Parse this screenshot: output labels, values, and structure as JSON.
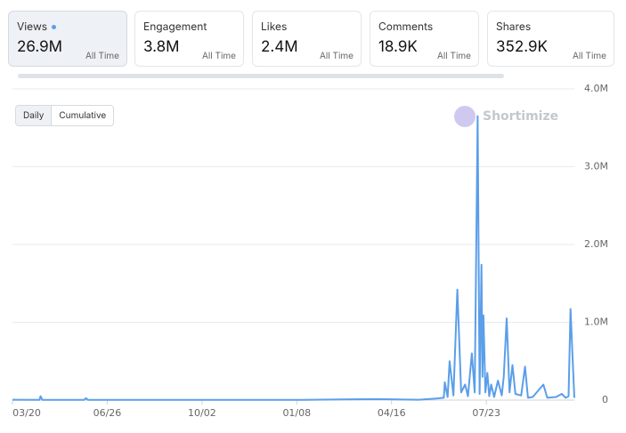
{
  "cards": [
    {
      "label": "Views",
      "value": "26.9M",
      "period": "All Time"
    },
    {
      "label": "Engagement",
      "value": "3.8M",
      "period": "All Time"
    },
    {
      "label": "Likes",
      "value": "2.4M",
      "period": "All Time"
    },
    {
      "label": "Comments",
      "value": "18.9K",
      "period": "All Time"
    },
    {
      "label": "Shares",
      "value": "352.9K",
      "period": "All Time"
    }
  ],
  "toggles": [
    "Daily",
    "Cumulative"
  ],
  "watermark": "Shortimize",
  "chart_data": {
    "type": "line",
    "x": [
      0,
      28,
      29,
      31,
      74,
      76,
      78,
      300,
      378,
      420,
      438,
      446,
      447,
      450,
      452,
      456,
      460,
      464,
      468,
      471,
      475,
      478,
      481,
      483,
      485,
      486,
      487,
      489,
      491,
      493,
      495,
      498,
      502,
      506,
      508,
      511,
      514,
      517,
      520,
      526,
      530,
      533,
      538,
      549,
      553,
      562,
      568,
      572,
      575,
      577,
      579,
      581
    ],
    "values": [
      5000,
      3000,
      50000,
      2000,
      2000,
      25000,
      2000,
      3000,
      12000,
      5000,
      20000,
      30000,
      230000,
      40000,
      500000,
      60000,
      1420000,
      100000,
      200000,
      50000,
      600000,
      100000,
      3650000,
      80000,
      1740000,
      300000,
      1090000,
      100000,
      350000,
      50000,
      200000,
      40000,
      250000,
      60000,
      300000,
      1050000,
      100000,
      450000,
      80000,
      60000,
      430000,
      30000,
      40000,
      200000,
      30000,
      40000,
      80000,
      30000,
      50000,
      1170000,
      600000,
      30000
    ],
    "color": "#5b9ee9",
    "xlim": [
      0,
      581
    ],
    "xticks": [
      {
        "value": 0,
        "label": "03/20"
      },
      {
        "value": 98,
        "label": "06/26"
      },
      {
        "value": 196,
        "label": "10/02"
      },
      {
        "value": 294,
        "label": "01/08"
      },
      {
        "value": 392,
        "label": "04/16"
      },
      {
        "value": 490,
        "label": "07/23"
      }
    ],
    "ylim": [
      0,
      4000000
    ],
    "yticks": [
      {
        "value": 0,
        "label": "0"
      },
      {
        "value": 1000000,
        "label": "1.0M"
      },
      {
        "value": 2000000,
        "label": "2.0M"
      },
      {
        "value": 3000000,
        "label": "3.0M"
      },
      {
        "value": 4000000,
        "label": "4.0M"
      }
    ],
    "grid": true
  }
}
